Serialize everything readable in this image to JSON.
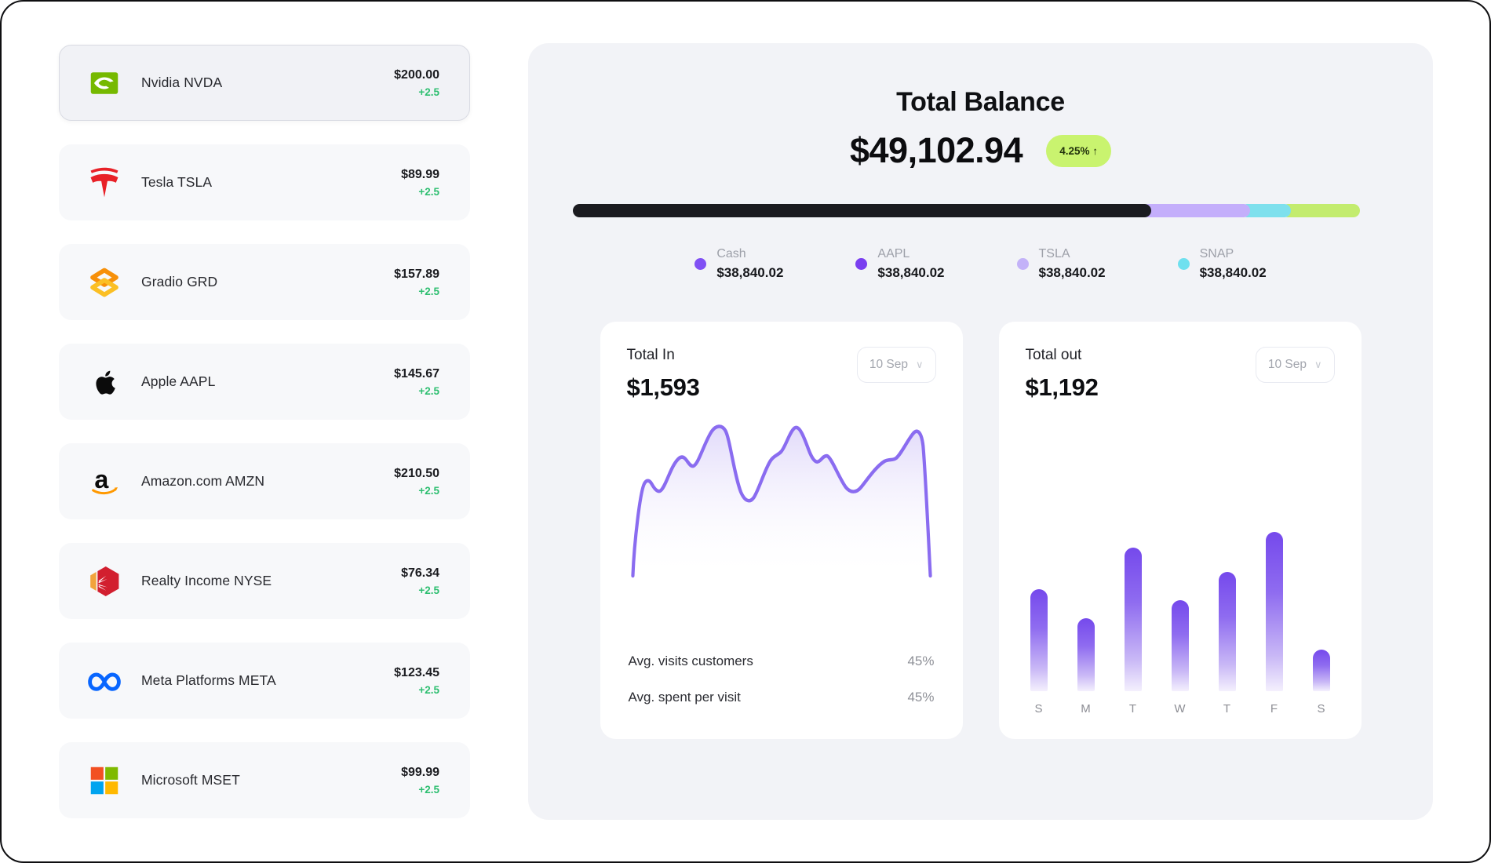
{
  "colors": {
    "accent_purple": "#8a6cf0",
    "badge_bg": "#c9f36f",
    "positive_green": "#2fbf71",
    "panel_bg": "#f2f3f7"
  },
  "sidebar": {
    "stocks": [
      {
        "name": "Nvidia NVDA",
        "icon": "nvidia-logo",
        "price": "$200.00",
        "change": "+2.5",
        "selected": true
      },
      {
        "name": "Tesla TSLA",
        "icon": "tesla-logo",
        "price": "$89.99",
        "change": "+2.5",
        "selected": false
      },
      {
        "name": "Gradio GRD",
        "icon": "gradio-logo",
        "price": "$157.89",
        "change": "+2.5",
        "selected": false
      },
      {
        "name": "Apple AAPL",
        "icon": "apple-logo",
        "price": "$145.67",
        "change": "+2.5",
        "selected": false
      },
      {
        "name": "Amazon.com AMZN",
        "icon": "amazon-logo",
        "price": "$210.50",
        "change": "+2.5",
        "selected": false
      },
      {
        "name": "Realty Income NYSE",
        "icon": "realty-income-logo",
        "price": "$76.34",
        "change": "+2.5",
        "selected": false
      },
      {
        "name": "Meta Platforms META",
        "icon": "meta-logo",
        "price": "$123.45",
        "change": "+2.5",
        "selected": false
      },
      {
        "name": "Microsoft MSET",
        "icon": "microsoft-logo",
        "price": "$99.99",
        "change": "+2.5",
        "selected": false
      }
    ]
  },
  "balance": {
    "title": "Total Balance",
    "amount": "$49,102.94",
    "change_badge": "4.25% ↑"
  },
  "allocation_bar": {
    "segments": [
      {
        "name": "black-segment",
        "color": "#1b1b20",
        "percent": 70.9
      },
      {
        "name": "light-purple-segment",
        "color": "#c4aefb",
        "percent": 13.3
      },
      {
        "name": "cyan-segment",
        "color": "#7ee0ed",
        "percent": 6.1
      },
      {
        "name": "lime-segment",
        "color": "#c3ec6e",
        "percent": 9.7
      }
    ]
  },
  "legend": [
    {
      "label": "Cash",
      "value": "$38,840.02",
      "color": "#8050f4"
    },
    {
      "label": "AAPL",
      "value": "$38,840.02",
      "color": "#7a3ff0"
    },
    {
      "label": "TSLA",
      "value": "$38,840.02",
      "color": "#c3b2f8"
    },
    {
      "label": "SNAP",
      "value": "$38,840.02",
      "color": "#6fe0ef"
    }
  ],
  "total_in": {
    "title": "Total In",
    "value": "$1,593",
    "period": "10 Sep",
    "stats": [
      {
        "label": "Avg. visits customers",
        "value": "45%"
      },
      {
        "label": "Avg. spent per visit",
        "value": "45%"
      }
    ]
  },
  "total_out": {
    "title": "Total out",
    "value": "$1,192",
    "period": "10 Sep"
  },
  "chart_data": [
    {
      "type": "area",
      "title": "Total In",
      "period": "10 Sep",
      "total": "$1,593",
      "x_implied": "time (unlabeled)",
      "y_relative_percent": [
        0,
        62,
        58,
        74,
        70,
        96,
        52,
        72,
        90,
        70,
        75,
        55,
        72,
        74,
        93,
        0
      ],
      "line_color": "#8a6cf0",
      "fill": "lavender gradient fading to transparent",
      "grid": false,
      "axes_labeled": false
    },
    {
      "type": "bar",
      "title": "Total out",
      "period": "10 Sep",
      "total": "$1,192",
      "categories": [
        "S",
        "M",
        "T",
        "W",
        "T",
        "F",
        "S"
      ],
      "values": [
        64,
        46,
        90,
        57,
        75,
        100,
        26
      ],
      "unit": "percent of tallest bar (no value axis shown)",
      "bar_gradient_top": "#7549ec",
      "bar_gradient_bottom": "#f4f0fd",
      "grid": false,
      "axes_labeled": false
    }
  ]
}
